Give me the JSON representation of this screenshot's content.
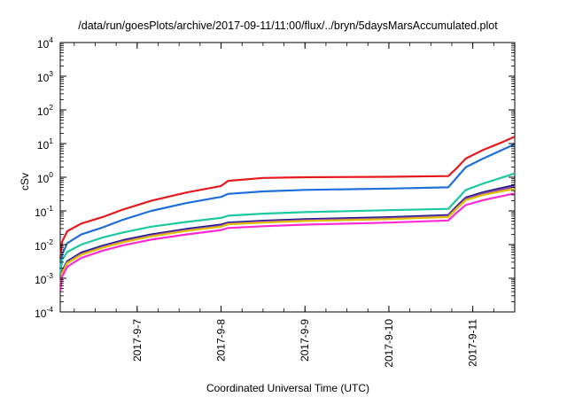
{
  "chart_data": {
    "type": "line",
    "title": "/data/run/goesPlots/archive/2017-09-11/11:00/flux/../bryn/5daysMarsAccumulated.plot",
    "xlabel": "Coordinated Universal Time (UTC)",
    "ylabel": "cSv",
    "xlim": [
      "2017-09-06 02:00",
      "2017-09-11 12:00"
    ],
    "ylim": [
      0.0001,
      10000
    ],
    "yscale": "log",
    "y_ticks": [
      {
        "base": "10",
        "exp": "-4",
        "value": 0.0001
      },
      {
        "base": "10",
        "exp": "-3",
        "value": 0.001
      },
      {
        "base": "10",
        "exp": "-2",
        "value": 0.01
      },
      {
        "base": "10",
        "exp": "-1",
        "value": 0.1
      },
      {
        "base": "10",
        "exp": "0",
        "value": 1
      },
      {
        "base": "10",
        "exp": "1",
        "value": 10
      },
      {
        "base": "10",
        "exp": "2",
        "value": 100
      },
      {
        "base": "10",
        "exp": "3",
        "value": 1000
      },
      {
        "base": "10",
        "exp": "4",
        "value": 10000
      }
    ],
    "x_ticks": [
      {
        "label": "2017-9-7",
        "x": "2017-09-07 00:00"
      },
      {
        "label": "2017-9-8",
        "x": "2017-09-08 00:00"
      },
      {
        "label": "2017-9-9",
        "x": "2017-09-09 00:00"
      },
      {
        "label": "2017-9-10",
        "x": "2017-09-10 00:00"
      },
      {
        "label": "2017-9-11",
        "x": "2017-09-11 00:00"
      }
    ],
    "grid": false,
    "legend": "none",
    "series": [
      {
        "color": "#e41a1c",
        "x": [
          "2017-09-06 02:00",
          "2017-09-06 02:30",
          "2017-09-06 04:00",
          "2017-09-06 08:00",
          "2017-09-06 14:00",
          "2017-09-06 20:00",
          "2017-09-07 04:00",
          "2017-09-07 14:00",
          "2017-09-08 00:00",
          "2017-09-08 02:00",
          "2017-09-08 12:00",
          "2017-09-09 00:00",
          "2017-09-10 00:00",
          "2017-09-10 17:00",
          "2017-09-10 19:30",
          "2017-09-10 22:00",
          "2017-09-11 03:00",
          "2017-09-11 08:00",
          "2017-09-11 12:00"
        ],
        "y": [
          0.004,
          0.012,
          0.025,
          0.042,
          0.065,
          0.11,
          0.2,
          0.35,
          0.55,
          0.78,
          0.95,
          1.0,
          1.03,
          1.08,
          1.9,
          3.6,
          6.5,
          10.5,
          16
        ]
      },
      {
        "color": "#1f6fd9",
        "x": [
          "2017-09-06 02:00",
          "2017-09-06 02:30",
          "2017-09-06 04:00",
          "2017-09-06 08:00",
          "2017-09-06 14:00",
          "2017-09-06 20:00",
          "2017-09-07 04:00",
          "2017-09-07 14:00",
          "2017-09-08 00:00",
          "2017-09-08 02:00",
          "2017-09-08 12:00",
          "2017-09-09 00:00",
          "2017-09-10 00:00",
          "2017-09-10 17:00",
          "2017-09-10 19:30",
          "2017-09-10 22:00",
          "2017-09-11 03:00",
          "2017-09-11 08:00",
          "2017-09-11 12:00"
        ],
        "y": [
          0.0018,
          0.005,
          0.011,
          0.02,
          0.032,
          0.055,
          0.1,
          0.17,
          0.26,
          0.32,
          0.38,
          0.42,
          0.46,
          0.5,
          1.0,
          2.0,
          3.6,
          6.2,
          9.5
        ]
      },
      {
        "color": "#1ec8a0",
        "x": [
          "2017-09-06 02:00",
          "2017-09-06 02:30",
          "2017-09-06 04:00",
          "2017-09-06 08:00",
          "2017-09-06 14:00",
          "2017-09-06 20:00",
          "2017-09-07 04:00",
          "2017-09-07 14:00",
          "2017-09-08 00:00",
          "2017-09-08 02:00",
          "2017-09-08 12:00",
          "2017-09-09 00:00",
          "2017-09-10 00:00",
          "2017-09-10 17:00",
          "2017-09-10 19:30",
          "2017-09-10 22:00",
          "2017-09-11 03:00",
          "2017-09-11 08:00",
          "2017-09-11 12:00"
        ],
        "y": [
          0.0012,
          0.0035,
          0.006,
          0.01,
          0.016,
          0.023,
          0.034,
          0.047,
          0.062,
          0.072,
          0.083,
          0.092,
          0.105,
          0.115,
          0.22,
          0.42,
          0.65,
          0.95,
          1.3
        ]
      },
      {
        "color": "#1a1a8c",
        "x": [
          "2017-09-06 02:00",
          "2017-09-06 02:30",
          "2017-09-06 04:00",
          "2017-09-06 08:00",
          "2017-09-06 14:00",
          "2017-09-06 20:00",
          "2017-09-07 04:00",
          "2017-09-07 14:00",
          "2017-09-08 00:00",
          "2017-09-08 02:00",
          "2017-09-08 12:00",
          "2017-09-09 00:00",
          "2017-09-10 00:00",
          "2017-09-10 17:00",
          "2017-09-10 19:30",
          "2017-09-10 22:00",
          "2017-09-11 03:00",
          "2017-09-11 08:00",
          "2017-09-11 12:00"
        ],
        "y": [
          0.0006,
          0.0016,
          0.0032,
          0.0058,
          0.0092,
          0.0135,
          0.02,
          0.029,
          0.039,
          0.045,
          0.051,
          0.057,
          0.065,
          0.075,
          0.14,
          0.25,
          0.36,
          0.47,
          0.58
        ]
      },
      {
        "color": "#8e44ad",
        "x": [
          "2017-09-06 02:00",
          "2017-09-06 02:30",
          "2017-09-06 04:00",
          "2017-09-06 08:00",
          "2017-09-06 14:00",
          "2017-09-06 20:00",
          "2017-09-07 04:00",
          "2017-09-07 14:00",
          "2017-09-08 00:00",
          "2017-09-08 02:00",
          "2017-09-08 12:00",
          "2017-09-09 00:00",
          "2017-09-10 00:00",
          "2017-09-10 17:00",
          "2017-09-10 19:30",
          "2017-09-10 22:00",
          "2017-09-11 03:00",
          "2017-09-11 08:00",
          "2017-09-11 12:00"
        ],
        "y": [
          0.00055,
          0.0015,
          0.003,
          0.0053,
          0.0085,
          0.0125,
          0.0185,
          0.027,
          0.036,
          0.042,
          0.048,
          0.053,
          0.06,
          0.07,
          0.13,
          0.23,
          0.33,
          0.43,
          0.53
        ]
      },
      {
        "color": "#e0c000",
        "x": [
          "2017-09-06 02:00",
          "2017-09-06 02:30",
          "2017-09-06 04:00",
          "2017-09-06 08:00",
          "2017-09-06 14:00",
          "2017-09-06 20:00",
          "2017-09-07 04:00",
          "2017-09-07 14:00",
          "2017-09-08 00:00",
          "2017-09-08 02:00",
          "2017-09-08 12:00",
          "2017-09-09 00:00",
          "2017-09-10 00:00",
          "2017-09-10 17:00",
          "2017-09-10 19:30",
          "2017-09-10 22:00",
          "2017-09-11 03:00",
          "2017-09-11 08:00",
          "2017-09-11 12:00"
        ],
        "y": [
          0.0005,
          0.0014,
          0.0028,
          0.005,
          0.008,
          0.0118,
          0.0175,
          0.0255,
          0.034,
          0.04,
          0.045,
          0.05,
          0.057,
          0.066,
          0.12,
          0.21,
          0.3,
          0.38,
          0.45
        ]
      },
      {
        "color": "#ff2ad4",
        "x": [
          "2017-09-06 02:00",
          "2017-09-06 02:30",
          "2017-09-06 04:00",
          "2017-09-06 08:00",
          "2017-09-06 14:00",
          "2017-09-06 20:00",
          "2017-09-07 04:00",
          "2017-09-07 14:00",
          "2017-09-08 00:00",
          "2017-09-08 02:00",
          "2017-09-08 12:00",
          "2017-09-09 00:00",
          "2017-09-10 00:00",
          "2017-09-10 17:00",
          "2017-09-10 19:30",
          "2017-09-10 22:00",
          "2017-09-11 03:00",
          "2017-09-11 08:00",
          "2017-09-11 12:00"
        ],
        "y": [
          0.0004,
          0.0011,
          0.0022,
          0.004,
          0.0065,
          0.0095,
          0.014,
          0.02,
          0.027,
          0.031,
          0.035,
          0.039,
          0.045,
          0.052,
          0.09,
          0.15,
          0.21,
          0.27,
          0.33
        ]
      }
    ]
  }
}
